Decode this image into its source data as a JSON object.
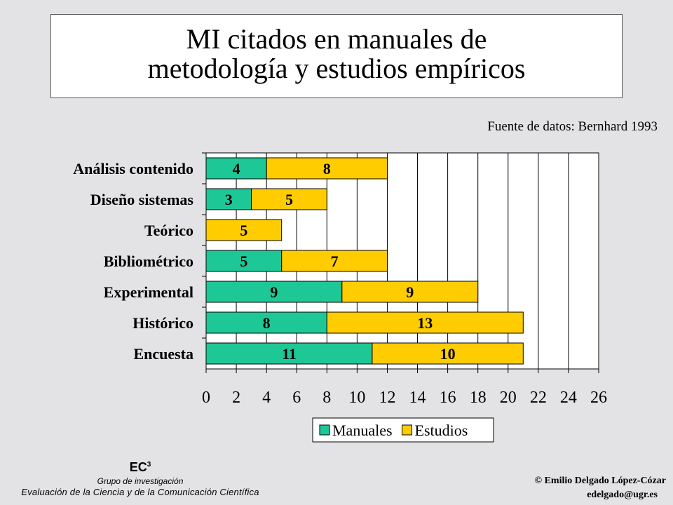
{
  "slide": {
    "title_line1": "MI citados en manuales de",
    "title_line2": "metodología y estudios empíricos",
    "source": "Fuente de datos: Bernhard 1993",
    "footer": {
      "logo_text": "EC",
      "logo_superscript": "3",
      "group": "Grupo de investigación",
      "evaluation": "Evaluación de la Ciencia y de la Comunicación Científica",
      "author": "© Emilio Delgado López-Cózar",
      "email": "edelgado@ugr.es"
    }
  },
  "chart_data": {
    "type": "bar",
    "orientation": "horizontal",
    "stacked": true,
    "categories": [
      "Análisis contenido",
      "Diseño sistemas",
      "Teórico",
      "Bibliométrico",
      "Experimental",
      "Histórico",
      "Encuesta"
    ],
    "series": [
      {
        "name": "Manuales",
        "values": [
          4,
          3,
          0,
          5,
          9,
          8,
          11
        ],
        "color": "#1ec896"
      },
      {
        "name": "Estudios",
        "values": [
          8,
          5,
          5,
          7,
          9,
          13,
          10
        ],
        "color": "#ffcc00"
      }
    ],
    "xlim": [
      0,
      26
    ],
    "xticks": [
      0,
      2,
      4,
      6,
      8,
      10,
      12,
      14,
      16,
      18,
      20,
      22,
      24,
      26
    ],
    "grid": true,
    "legend_position": "bottom",
    "plot_background": "#ffffff"
  }
}
